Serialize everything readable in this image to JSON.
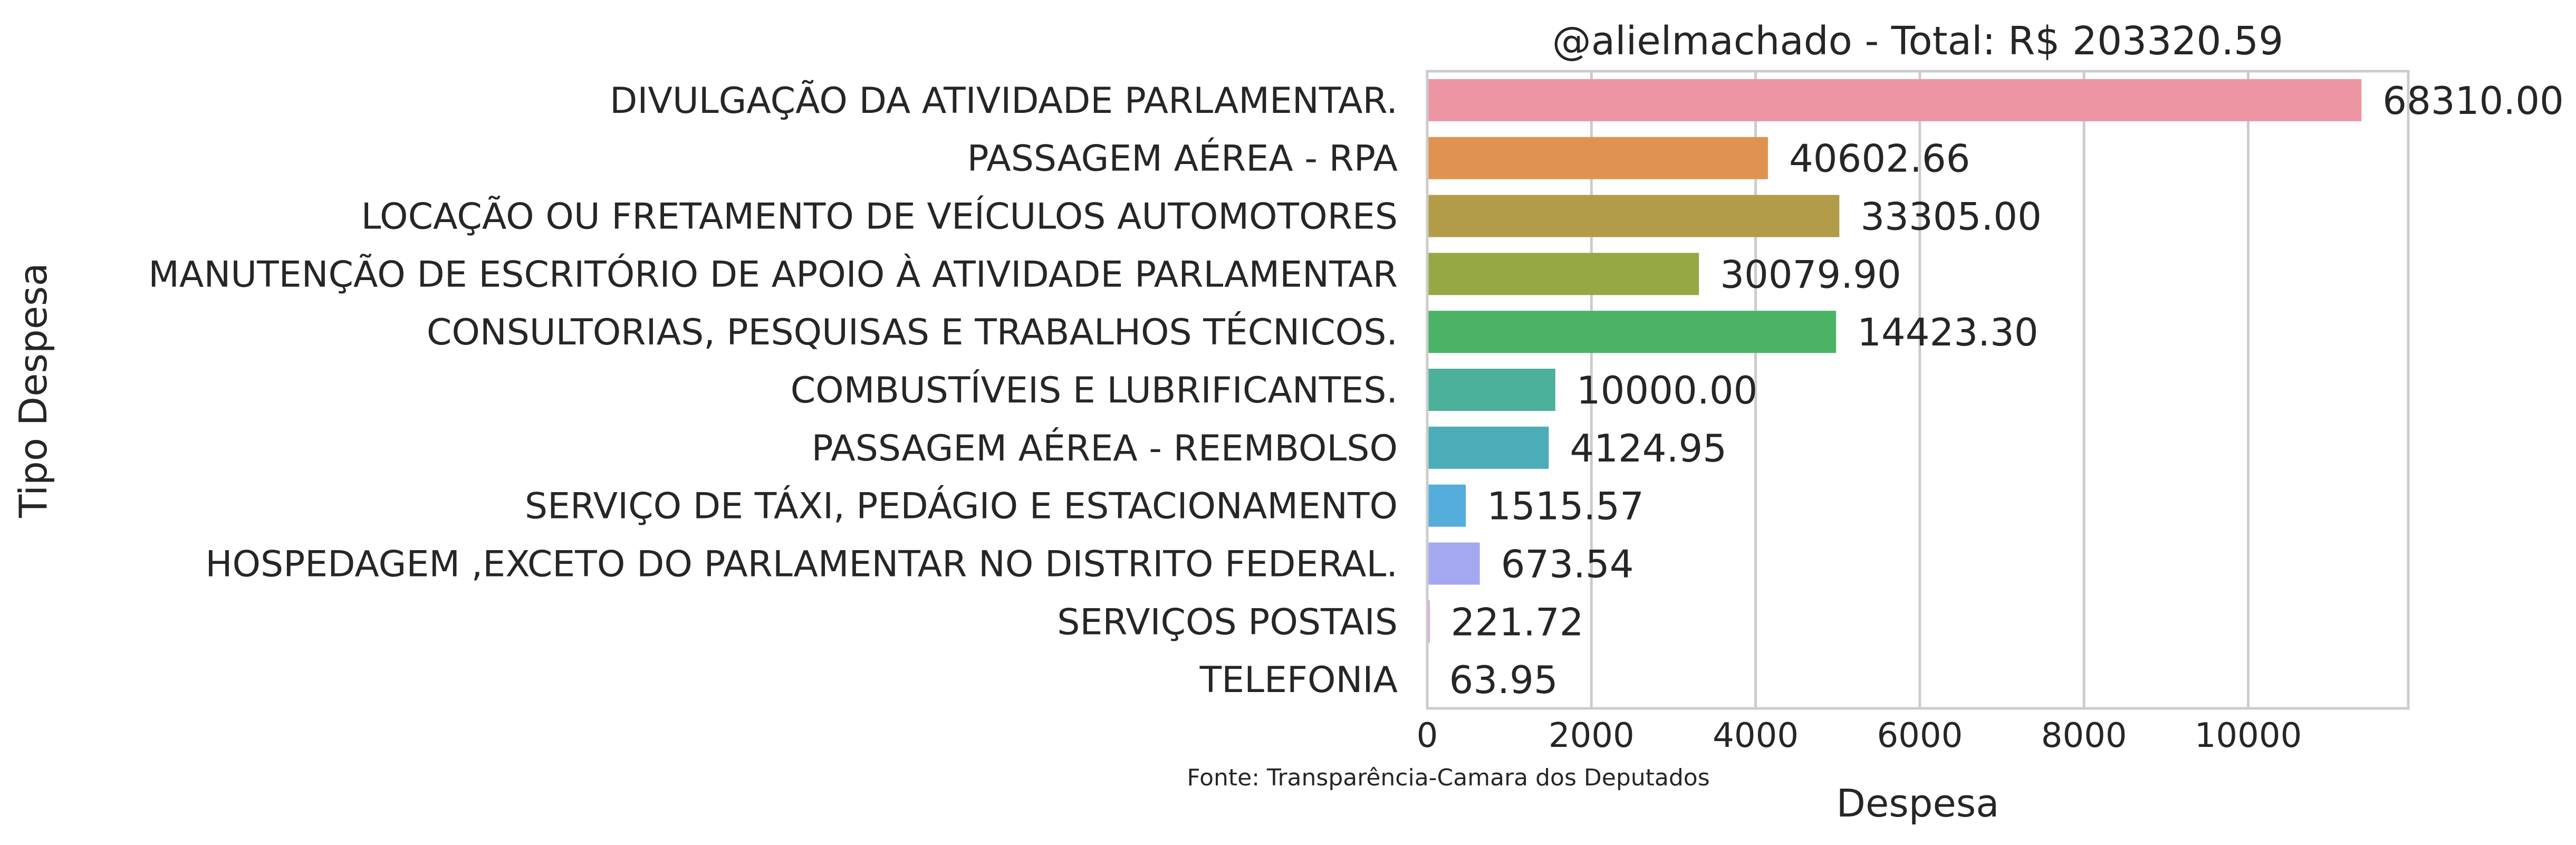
{
  "chart_data": {
    "type": "bar",
    "orientation": "horizontal",
    "title": "@alielmachado - Total: R$ 203320.59",
    "xlabel": "Despesa",
    "ylabel": "Tipo Despesa",
    "source_note": "Fonte: Transparência-Camara dos Deputados",
    "xlim": [
      0,
      11950
    ],
    "xticks": [
      0,
      2000,
      4000,
      6000,
      8000,
      10000
    ],
    "xtick_labels": [
      "0",
      "2000",
      "4000",
      "6000",
      "8000",
      "10000"
    ],
    "grid": "vertical",
    "categories": [
      "DIVULGAÇÃO DA ATIVIDADE PARLAMENTAR.",
      "PASSAGEM AÉREA - RPA",
      "LOCAÇÃO OU FRETAMENTO DE VEÍCULOS AUTOMOTORES",
      "MANUTENÇÃO DE ESCRITÓRIO DE APOIO À ATIVIDADE PARLAMENTAR",
      "CONSULTORIAS, PESQUISAS E TRABALHOS TÉCNICOS.",
      "COMBUSTÍVEIS E LUBRIFICANTES.",
      "PASSAGEM AÉREA - REEMBOLSO",
      "SERVIÇO DE TÁXI, PEDÁGIO E ESTACIONAMENTO",
      "HOSPEDAGEM ,EXCETO DO PARLAMENTAR NO DISTRITO FEDERAL.",
      "SERVIÇOS POSTAIS",
      "TELEFONIA"
    ],
    "values": [
      11380,
      4150,
      5020,
      3310,
      4980,
      1560,
      1480,
      470,
      640,
      30,
      10
    ],
    "value_labels": [
      "68310.00",
      "40602.66",
      "33305.00",
      "30079.90",
      "14423.30",
      "10000.00",
      "4124.95",
      "1515.57",
      "673.54",
      "221.72",
      "63.95"
    ],
    "colors": [
      "#ed96a3",
      "#e09350",
      "#b39c48",
      "#95a844",
      "#4ab366",
      "#4bb199",
      "#4badb8",
      "#55addc",
      "#a4a8f0",
      "#e193de",
      "#e996c7"
    ]
  }
}
